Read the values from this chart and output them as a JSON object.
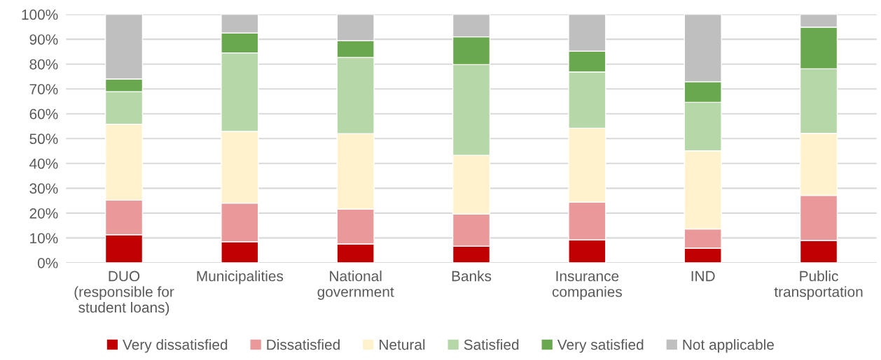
{
  "chart_data": {
    "type": "bar",
    "stacked": true,
    "categories": [
      "DUO\n(responsible for\nstudent loans)",
      "Municipalities",
      "National\ngovernment",
      "Banks",
      "Insurance\ncompanies",
      "IND",
      "Public\ntransportation"
    ],
    "series": [
      {
        "name": "Very dissatisfied",
        "color": "#c00000",
        "values": [
          11.3,
          8.5,
          7.6,
          6.7,
          9.2,
          5.9,
          9.0
        ]
      },
      {
        "name": "Dissatisfied",
        "color": "#e99999",
        "values": [
          13.9,
          15.5,
          14.0,
          12.9,
          15.2,
          7.7,
          18.1
        ]
      },
      {
        "name": "Netural",
        "color": "#fff2cc",
        "values": [
          30.6,
          28.9,
          30.4,
          23.7,
          29.8,
          31.5,
          25.0
        ]
      },
      {
        "name": "Satisfied",
        "color": "#b6d7a8",
        "values": [
          13.1,
          31.6,
          30.7,
          36.5,
          22.6,
          19.5,
          26.0
        ]
      },
      {
        "name": "Very satisfied",
        "color": "#6aa84f",
        "values": [
          5.1,
          8.0,
          6.7,
          11.2,
          8.4,
          8.3,
          16.8
        ]
      },
      {
        "name": "Not applicable",
        "color": "#bfbfbf",
        "values": [
          26.0,
          7.5,
          10.6,
          9.0,
          14.8,
          27.1,
          5.1
        ]
      }
    ],
    "ylim": [
      0,
      100
    ],
    "yticks": [
      {
        "value": 0,
        "label": "0%"
      },
      {
        "value": 10,
        "label": "10%"
      },
      {
        "value": 20,
        "label": "20%"
      },
      {
        "value": 30,
        "label": "30%"
      },
      {
        "value": 40,
        "label": "40%"
      },
      {
        "value": 50,
        "label": "50%"
      },
      {
        "value": 60,
        "label": "60%"
      },
      {
        "value": 70,
        "label": "70%"
      },
      {
        "value": 80,
        "label": "80%"
      },
      {
        "value": 90,
        "label": "90%"
      },
      {
        "value": 100,
        "label": "100%"
      }
    ],
    "grid": "y",
    "legend": "bottom"
  }
}
